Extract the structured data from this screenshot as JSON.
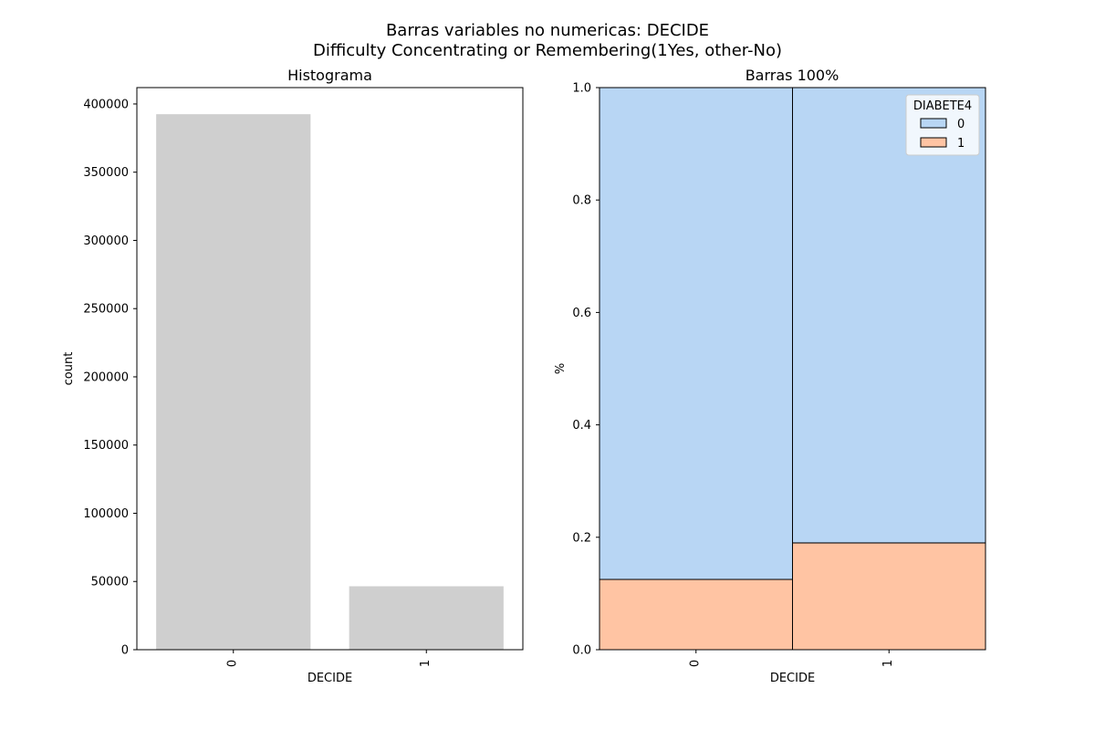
{
  "figure": {
    "title_line1": "Barras variables no numericas: DECIDE",
    "title_line2": "Difficulty Concentrating or Remembering(1Yes, other-No)"
  },
  "chart_data": [
    {
      "type": "bar",
      "title": "Histograma",
      "xlabel": "DECIDE",
      "ylabel": "count",
      "categories": [
        "0",
        "1"
      ],
      "values": [
        392500,
        46500
      ],
      "ylim": [
        0,
        412000
      ],
      "yticks": [
        0,
        50000,
        100000,
        150000,
        200000,
        250000,
        300000,
        350000,
        400000
      ],
      "bar_color": "#cfcfcf",
      "grid": false
    },
    {
      "type": "bar",
      "stacked": "100%",
      "title": "Barras 100%",
      "xlabel": "DECIDE",
      "ylabel": "%",
      "categories": [
        "0",
        "1"
      ],
      "ylim": [
        0,
        1
      ],
      "yticks": [
        "0.0",
        "0.2",
        "0.4",
        "0.6",
        "0.8",
        "1.0"
      ],
      "legend": {
        "title": "DIABETE4",
        "placement": "top-right"
      },
      "series": [
        {
          "name": "1",
          "values": [
            0.125,
            0.19
          ],
          "color": "#ffc4a3"
        },
        {
          "name": "0",
          "values": [
            0.875,
            0.81
          ],
          "color": "#b8d6f4"
        }
      ],
      "grid": false
    }
  ]
}
